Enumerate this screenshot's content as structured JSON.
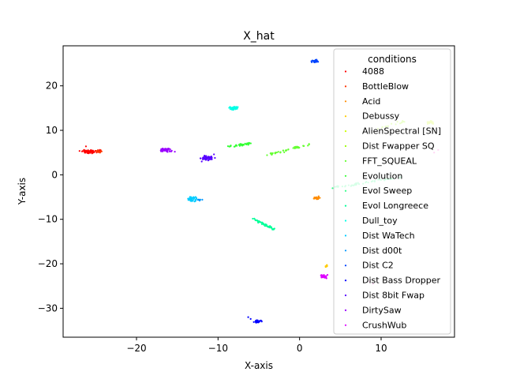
{
  "chart_data": {
    "type": "scatter",
    "title": "X_hat",
    "xlabel": "X-axis",
    "ylabel": "Y-axis",
    "xlim": [
      -29,
      19.0
    ],
    "ylim": [
      -36.5,
      29.0
    ],
    "xticks": [
      -20,
      -10,
      0,
      10
    ],
    "yticks": [
      -30,
      -20,
      -10,
      0,
      10,
      20
    ],
    "tick_labels_x": [
      "−20",
      "−10",
      "0",
      "10"
    ],
    "tick_labels_y": [
      "−30",
      "−20",
      "−10",
      "0",
      "10",
      "20"
    ],
    "grid": false,
    "legend": {
      "title": "conditions",
      "placement": "upper-right",
      "entries": [
        "4088",
        "BottleBlow",
        "Acid",
        "Debussy",
        "AlienSpectral [SN]",
        "Dist Fwapper SQ",
        "FFT_SQUEAL",
        "Evolution",
        "Evol Sweep",
        "Evol Longreece",
        "Dull_toy",
        "Dist WaTech",
        "Dist d00t",
        "Dist C2",
        "Dist Bass Dropper",
        "Dist 8bit Fwap",
        "DirtySaw",
        "CrushWub"
      ]
    },
    "series": [
      {
        "name": "4088",
        "color": "#ff0000",
        "shape": "blob",
        "center": [
          -25.8,
          5.2
        ],
        "spread": [
          0.9,
          0.35
        ],
        "n": 70
      },
      {
        "name": "BottleBlow",
        "color": "#ff3300",
        "shape": "blob",
        "center": [
          -24.8,
          5.3
        ],
        "spread": [
          0.5,
          0.25
        ],
        "n": 18
      },
      {
        "name": "Acid",
        "color": "#ff8c00",
        "shape": "blob",
        "center": [
          2.2,
          -5.2
        ],
        "spread": [
          0.35,
          0.3
        ],
        "n": 25
      },
      {
        "name": "Debussy",
        "color": "#ffcc00",
        "shape": "line",
        "start": [
          3.2,
          -20.8
        ],
        "end": [
          3.4,
          -20.2
        ],
        "n": 8
      },
      {
        "name": "AlienSpectral [SN]",
        "color": "#ccff00",
        "shape": "blob",
        "center": [
          16.0,
          11.8
        ],
        "spread": [
          0.5,
          0.3
        ],
        "n": 25
      },
      {
        "name": "Dist Fwapper SQ",
        "color": "#99ff00",
        "shape": "line",
        "start": [
          9.5,
          10.5
        ],
        "end": [
          13.0,
          12.0
        ],
        "n": 15
      },
      {
        "name": "FFT_SQUEAL",
        "color": "#66ff33",
        "shape": "line",
        "start": [
          -4.0,
          4.5
        ],
        "end": [
          1.2,
          6.8
        ],
        "n": 45
      },
      {
        "name": "Evolution",
        "color": "#33ff33",
        "shape": "line",
        "start": [
          -8.8,
          6.3
        ],
        "end": [
          -5.8,
          7.1
        ],
        "n": 40
      },
      {
        "name": "Evol Sweep",
        "color": "#33ff88",
        "shape": "line",
        "start": [
          4.0,
          -3.0
        ],
        "end": [
          12.5,
          -0.5
        ],
        "n": 45
      },
      {
        "name": "Evol Longreece",
        "color": "#00ff99",
        "shape": "line",
        "start": [
          -5.8,
          -9.8
        ],
        "end": [
          -3.2,
          -12.2
        ],
        "n": 45
      },
      {
        "name": "Dull_toy",
        "color": "#00ffe6",
        "shape": "blob",
        "center": [
          -8.0,
          15.0
        ],
        "spread": [
          0.7,
          0.4
        ],
        "n": 40
      },
      {
        "name": "Dist WaTech",
        "color": "#00ccff",
        "shape": "blob",
        "center": [
          -13.2,
          -5.5
        ],
        "spread": [
          0.55,
          0.45
        ],
        "n": 40
      },
      {
        "name": "Dist d00t",
        "color": "#0099ff",
        "shape": "blob",
        "center": [
          -12.3,
          -5.6
        ],
        "spread": [
          0.3,
          0.2
        ],
        "n": 8
      },
      {
        "name": "Dist C2",
        "color": "#0044ff",
        "shape": "blob",
        "center": [
          1.9,
          25.6
        ],
        "spread": [
          0.45,
          0.35
        ],
        "n": 30
      },
      {
        "name": "Dist Bass Dropper",
        "color": "#0000ff",
        "shape": "blob",
        "center": [
          -5.1,
          -33.0
        ],
        "spread": [
          0.4,
          0.25
        ],
        "n": 30
      },
      {
        "name": "Dist 8bit Fwap",
        "color": "#5500ff",
        "shape": "blob",
        "center": [
          -11.3,
          3.8
        ],
        "spread": [
          0.7,
          0.45
        ],
        "n": 55
      },
      {
        "name": "DirtySaw",
        "color": "#9900ff",
        "shape": "blob",
        "center": [
          -16.4,
          5.5
        ],
        "spread": [
          0.6,
          0.45
        ],
        "n": 50
      },
      {
        "name": "CrushWub",
        "color": "#dd00ff",
        "shape": "blob",
        "center": [
          3.0,
          -22.8
        ],
        "spread": [
          0.45,
          0.35
        ],
        "n": 35
      }
    ],
    "extra_points": [
      {
        "name": "CrushWub",
        "color": "#ff33cc",
        "points": [
          [
            9.0,
            -24.5
          ],
          [
            8.6,
            -24.0
          ],
          [
            16.5,
            5.0
          ],
          [
            17.0,
            5.6
          ]
        ]
      },
      {
        "name": "Dist Bass Dropper",
        "color": "#0000ff",
        "points": [
          [
            -6.3,
            -32.0
          ],
          [
            -6.0,
            -32.4
          ]
        ]
      },
      {
        "name": "4088",
        "color": "#ff0000",
        "points": [
          [
            -26.2,
            6.4
          ],
          [
            -24.5,
            5.6
          ]
        ]
      },
      {
        "name": "Dist 8bit Fwap",
        "color": "#5500ff",
        "points": [
          [
            -12.0,
            3.0
          ],
          [
            -10.5,
            4.6
          ]
        ]
      },
      {
        "name": "DirtySaw",
        "color": "#9900ff",
        "points": [
          [
            -15.3,
            5.2
          ]
        ]
      }
    ]
  }
}
